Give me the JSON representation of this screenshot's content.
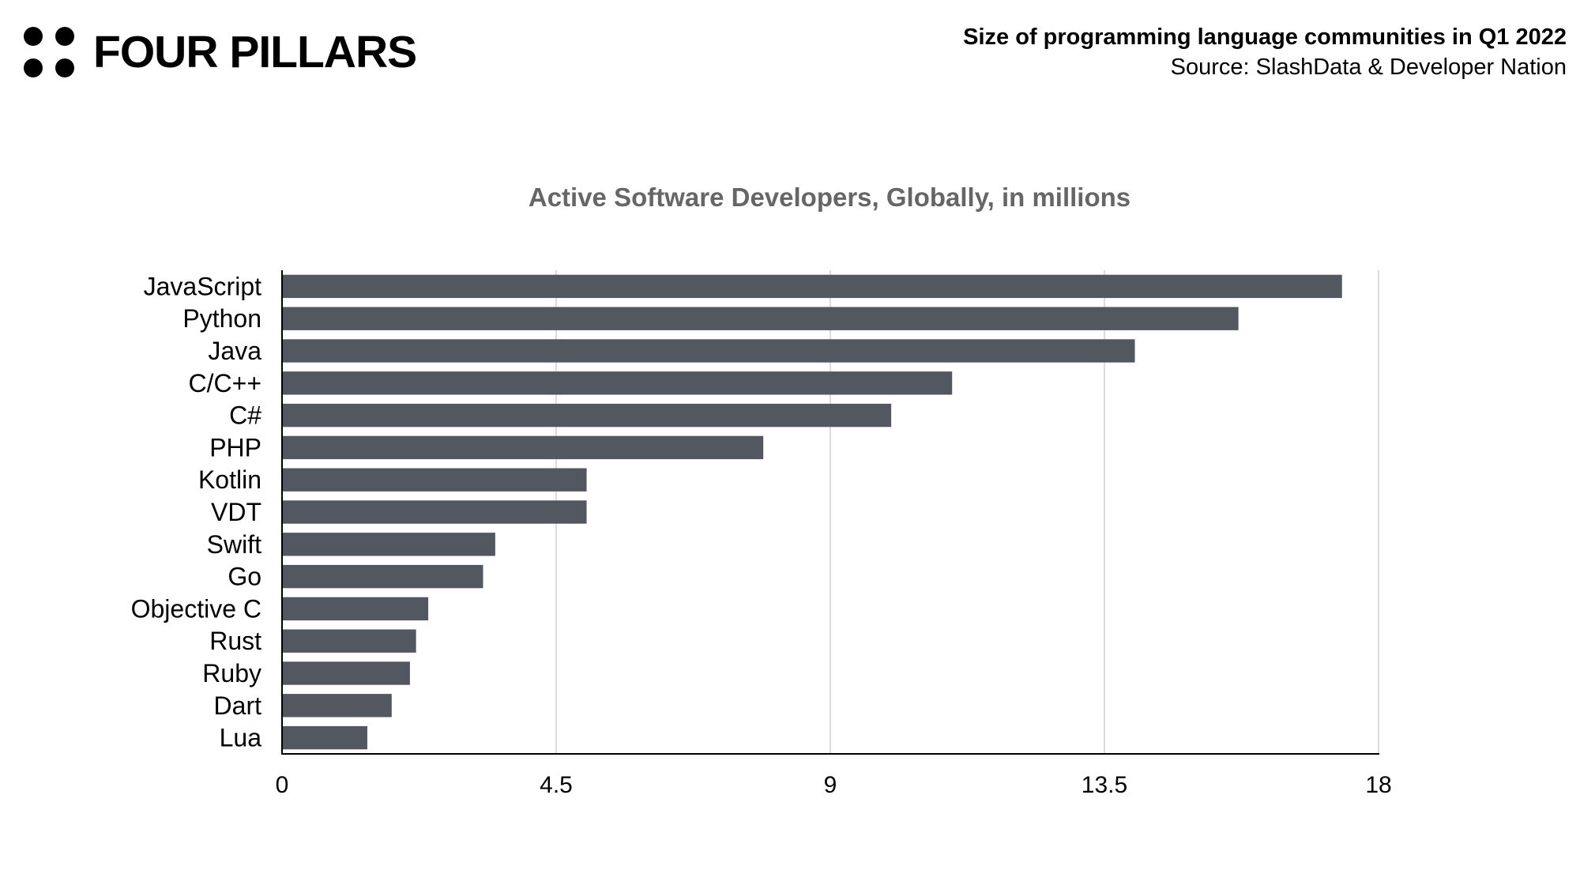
{
  "brand": {
    "name": "FOUR PILLARS",
    "logo_icon": "four-dots-icon"
  },
  "header": {
    "title": "Size of programming language communities in Q1 2022",
    "source": "Source: SlashData & Developer Nation"
  },
  "chart_data": {
    "type": "bar",
    "orientation": "horizontal",
    "title": "Active Software Developers, Globally, in millions",
    "xlabel": "",
    "ylabel": "",
    "categories": [
      "JavaScript",
      "Python",
      "Java",
      "C/C++",
      "C#",
      "PHP",
      "Kotlin",
      "VDT",
      "Swift",
      "Go",
      "Objective C",
      "Rust",
      "Ruby",
      "Dart",
      "Lua"
    ],
    "values": [
      17.4,
      15.7,
      14.0,
      11.0,
      10.0,
      7.9,
      5.0,
      5.0,
      3.5,
      3.3,
      2.4,
      2.2,
      2.1,
      1.8,
      1.4
    ],
    "xlim": [
      0,
      18
    ],
    "xticks": [
      "0",
      "4.5",
      "9",
      "13.5",
      "18"
    ],
    "grid": true,
    "legend": "none",
    "bar_color": "#53575f",
    "title_color": "#666666",
    "grid_color": "#d0d0d0"
  }
}
